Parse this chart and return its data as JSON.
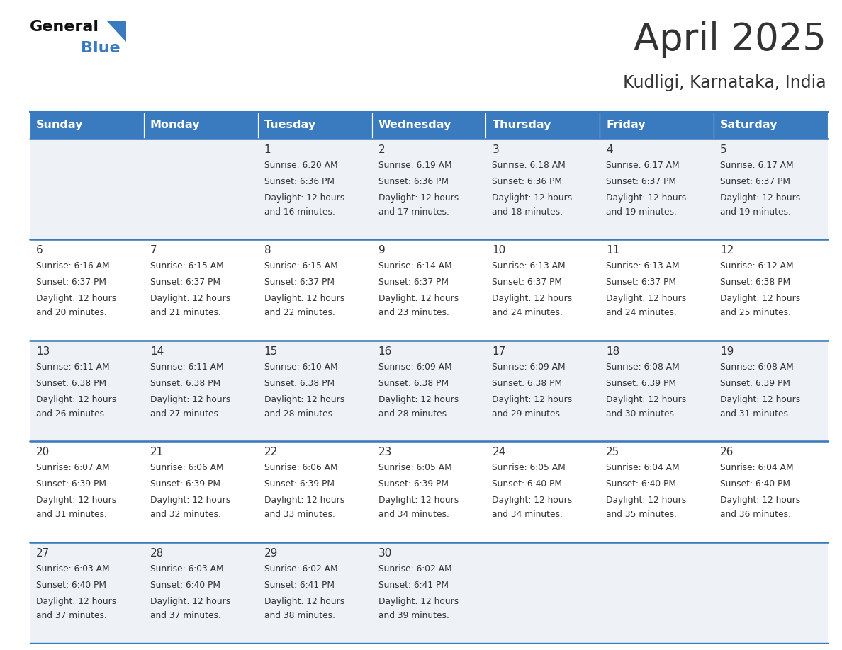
{
  "title": "April 2025",
  "subtitle": "Kudligi, Karnataka, India",
  "header_bg_color": "#3a7bbf",
  "header_text_color": "#ffffff",
  "cell_bg_even": "#eef2f7",
  "cell_bg_odd": "#ffffff",
  "border_color": "#3a7bbf",
  "text_color": "#333333",
  "logo_text_color": "#1a1a1a",
  "logo_blue_color": "#3a7bbf",
  "days_of_week": [
    "Sunday",
    "Monday",
    "Tuesday",
    "Wednesday",
    "Thursday",
    "Friday",
    "Saturday"
  ],
  "calendar": [
    [
      {
        "day": null,
        "sunrise": null,
        "sunset": null,
        "daylight": null
      },
      {
        "day": null,
        "sunrise": null,
        "sunset": null,
        "daylight": null
      },
      {
        "day": 1,
        "sunrise": "6:20 AM",
        "sunset": "6:36 PM",
        "daylight": "12 hours\nand 16 minutes."
      },
      {
        "day": 2,
        "sunrise": "6:19 AM",
        "sunset": "6:36 PM",
        "daylight": "12 hours\nand 17 minutes."
      },
      {
        "day": 3,
        "sunrise": "6:18 AM",
        "sunset": "6:36 PM",
        "daylight": "12 hours\nand 18 minutes."
      },
      {
        "day": 4,
        "sunrise": "6:17 AM",
        "sunset": "6:37 PM",
        "daylight": "12 hours\nand 19 minutes."
      },
      {
        "day": 5,
        "sunrise": "6:17 AM",
        "sunset": "6:37 PM",
        "daylight": "12 hours\nand 19 minutes."
      }
    ],
    [
      {
        "day": 6,
        "sunrise": "6:16 AM",
        "sunset": "6:37 PM",
        "daylight": "12 hours\nand 20 minutes."
      },
      {
        "day": 7,
        "sunrise": "6:15 AM",
        "sunset": "6:37 PM",
        "daylight": "12 hours\nand 21 minutes."
      },
      {
        "day": 8,
        "sunrise": "6:15 AM",
        "sunset": "6:37 PM",
        "daylight": "12 hours\nand 22 minutes."
      },
      {
        "day": 9,
        "sunrise": "6:14 AM",
        "sunset": "6:37 PM",
        "daylight": "12 hours\nand 23 minutes."
      },
      {
        "day": 10,
        "sunrise": "6:13 AM",
        "sunset": "6:37 PM",
        "daylight": "12 hours\nand 24 minutes."
      },
      {
        "day": 11,
        "sunrise": "6:13 AM",
        "sunset": "6:37 PM",
        "daylight": "12 hours\nand 24 minutes."
      },
      {
        "day": 12,
        "sunrise": "6:12 AM",
        "sunset": "6:38 PM",
        "daylight": "12 hours\nand 25 minutes."
      }
    ],
    [
      {
        "day": 13,
        "sunrise": "6:11 AM",
        "sunset": "6:38 PM",
        "daylight": "12 hours\nand 26 minutes."
      },
      {
        "day": 14,
        "sunrise": "6:11 AM",
        "sunset": "6:38 PM",
        "daylight": "12 hours\nand 27 minutes."
      },
      {
        "day": 15,
        "sunrise": "6:10 AM",
        "sunset": "6:38 PM",
        "daylight": "12 hours\nand 28 minutes."
      },
      {
        "day": 16,
        "sunrise": "6:09 AM",
        "sunset": "6:38 PM",
        "daylight": "12 hours\nand 28 minutes."
      },
      {
        "day": 17,
        "sunrise": "6:09 AM",
        "sunset": "6:38 PM",
        "daylight": "12 hours\nand 29 minutes."
      },
      {
        "day": 18,
        "sunrise": "6:08 AM",
        "sunset": "6:39 PM",
        "daylight": "12 hours\nand 30 minutes."
      },
      {
        "day": 19,
        "sunrise": "6:08 AM",
        "sunset": "6:39 PM",
        "daylight": "12 hours\nand 31 minutes."
      }
    ],
    [
      {
        "day": 20,
        "sunrise": "6:07 AM",
        "sunset": "6:39 PM",
        "daylight": "12 hours\nand 31 minutes."
      },
      {
        "day": 21,
        "sunrise": "6:06 AM",
        "sunset": "6:39 PM",
        "daylight": "12 hours\nand 32 minutes."
      },
      {
        "day": 22,
        "sunrise": "6:06 AM",
        "sunset": "6:39 PM",
        "daylight": "12 hours\nand 33 minutes."
      },
      {
        "day": 23,
        "sunrise": "6:05 AM",
        "sunset": "6:39 PM",
        "daylight": "12 hours\nand 34 minutes."
      },
      {
        "day": 24,
        "sunrise": "6:05 AM",
        "sunset": "6:40 PM",
        "daylight": "12 hours\nand 34 minutes."
      },
      {
        "day": 25,
        "sunrise": "6:04 AM",
        "sunset": "6:40 PM",
        "daylight": "12 hours\nand 35 minutes."
      },
      {
        "day": 26,
        "sunrise": "6:04 AM",
        "sunset": "6:40 PM",
        "daylight": "12 hours\nand 36 minutes."
      }
    ],
    [
      {
        "day": 27,
        "sunrise": "6:03 AM",
        "sunset": "6:40 PM",
        "daylight": "12 hours\nand 37 minutes."
      },
      {
        "day": 28,
        "sunrise": "6:03 AM",
        "sunset": "6:40 PM",
        "daylight": "12 hours\nand 37 minutes."
      },
      {
        "day": 29,
        "sunrise": "6:02 AM",
        "sunset": "6:41 PM",
        "daylight": "12 hours\nand 38 minutes."
      },
      {
        "day": 30,
        "sunrise": "6:02 AM",
        "sunset": "6:41 PM",
        "daylight": "12 hours\nand 39 minutes."
      },
      {
        "day": null,
        "sunrise": null,
        "sunset": null,
        "daylight": null
      },
      {
        "day": null,
        "sunrise": null,
        "sunset": null,
        "daylight": null
      },
      {
        "day": null,
        "sunrise": null,
        "sunset": null,
        "daylight": null
      }
    ]
  ]
}
